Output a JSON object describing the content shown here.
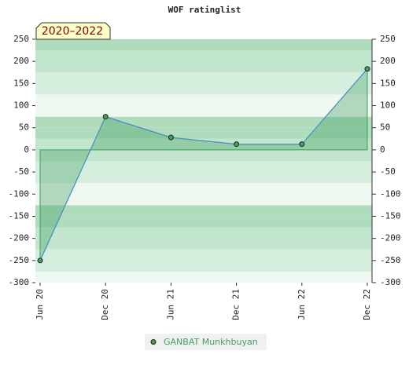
{
  "chart_data": {
    "type": "area",
    "title": "WOF ratinglist",
    "annotation": "2020–2022",
    "categories": [
      "Jun 20",
      "Dec 20",
      "Jun 21",
      "Dec 21",
      "Jun 22",
      "Dec 22"
    ],
    "series": [
      {
        "name": "GANBAT Munkhbuyan",
        "color": "#3f9f5f",
        "values": [
          -250,
          75,
          28,
          13,
          13,
          183
        ]
      }
    ],
    "ylim": [
      -300,
      250
    ],
    "yticks": [
      -300,
      -250,
      -200,
      -150,
      -100,
      -50,
      0,
      50,
      100,
      150,
      200,
      250
    ],
    "y2lim": [
      -300,
      250
    ],
    "y2ticks": [
      -300,
      -250,
      -200,
      -150,
      -100,
      -50,
      0,
      50,
      100,
      150,
      200,
      250
    ]
  }
}
